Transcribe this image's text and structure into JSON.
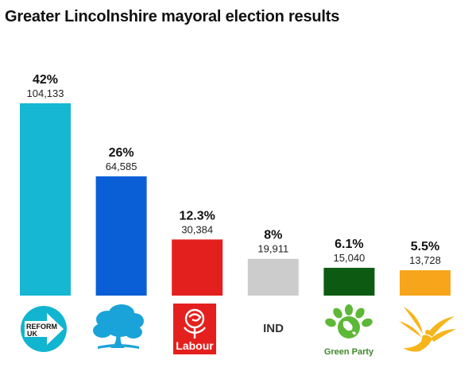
{
  "title": "Greater Lincolnshire mayoral election results",
  "chart_data": {
    "type": "bar",
    "title": "Greater Lincolnshire mayoral election results",
    "categories": [
      "Reform UK",
      "Conservative",
      "Labour",
      "IND",
      "Green Party",
      "Liberal Democrats"
    ],
    "values": [
      104133,
      64585,
      30384,
      19911,
      15040,
      13728
    ],
    "value_labels": [
      "104,133",
      "64,585",
      "30,384",
      "19,911",
      "15,040",
      "13,728"
    ],
    "percent_labels": [
      "42%",
      "26%",
      "12.3%",
      "8%",
      "6.1%",
      "5.5%"
    ],
    "colors": [
      "#15b7d2",
      "#0a5fd6",
      "#e4201e",
      "#cccccc",
      "#0d5b12",
      "#f7a51b"
    ],
    "ylim": [
      0,
      104133
    ],
    "grid": false,
    "legend": "none"
  },
  "logos": {
    "reform": {
      "line1": "REFORM",
      "line2": "UK",
      "icon": "reform-arrow-icon"
    },
    "conservative": {
      "icon": "conservative-tree-icon"
    },
    "labour": {
      "text": "Labour",
      "icon": "labour-rose-icon"
    },
    "ind": {
      "text": "IND"
    },
    "green": {
      "text": "Green Party",
      "icon": "green-globe-icon"
    },
    "libdem": {
      "icon": "libdem-bird-icon"
    }
  }
}
